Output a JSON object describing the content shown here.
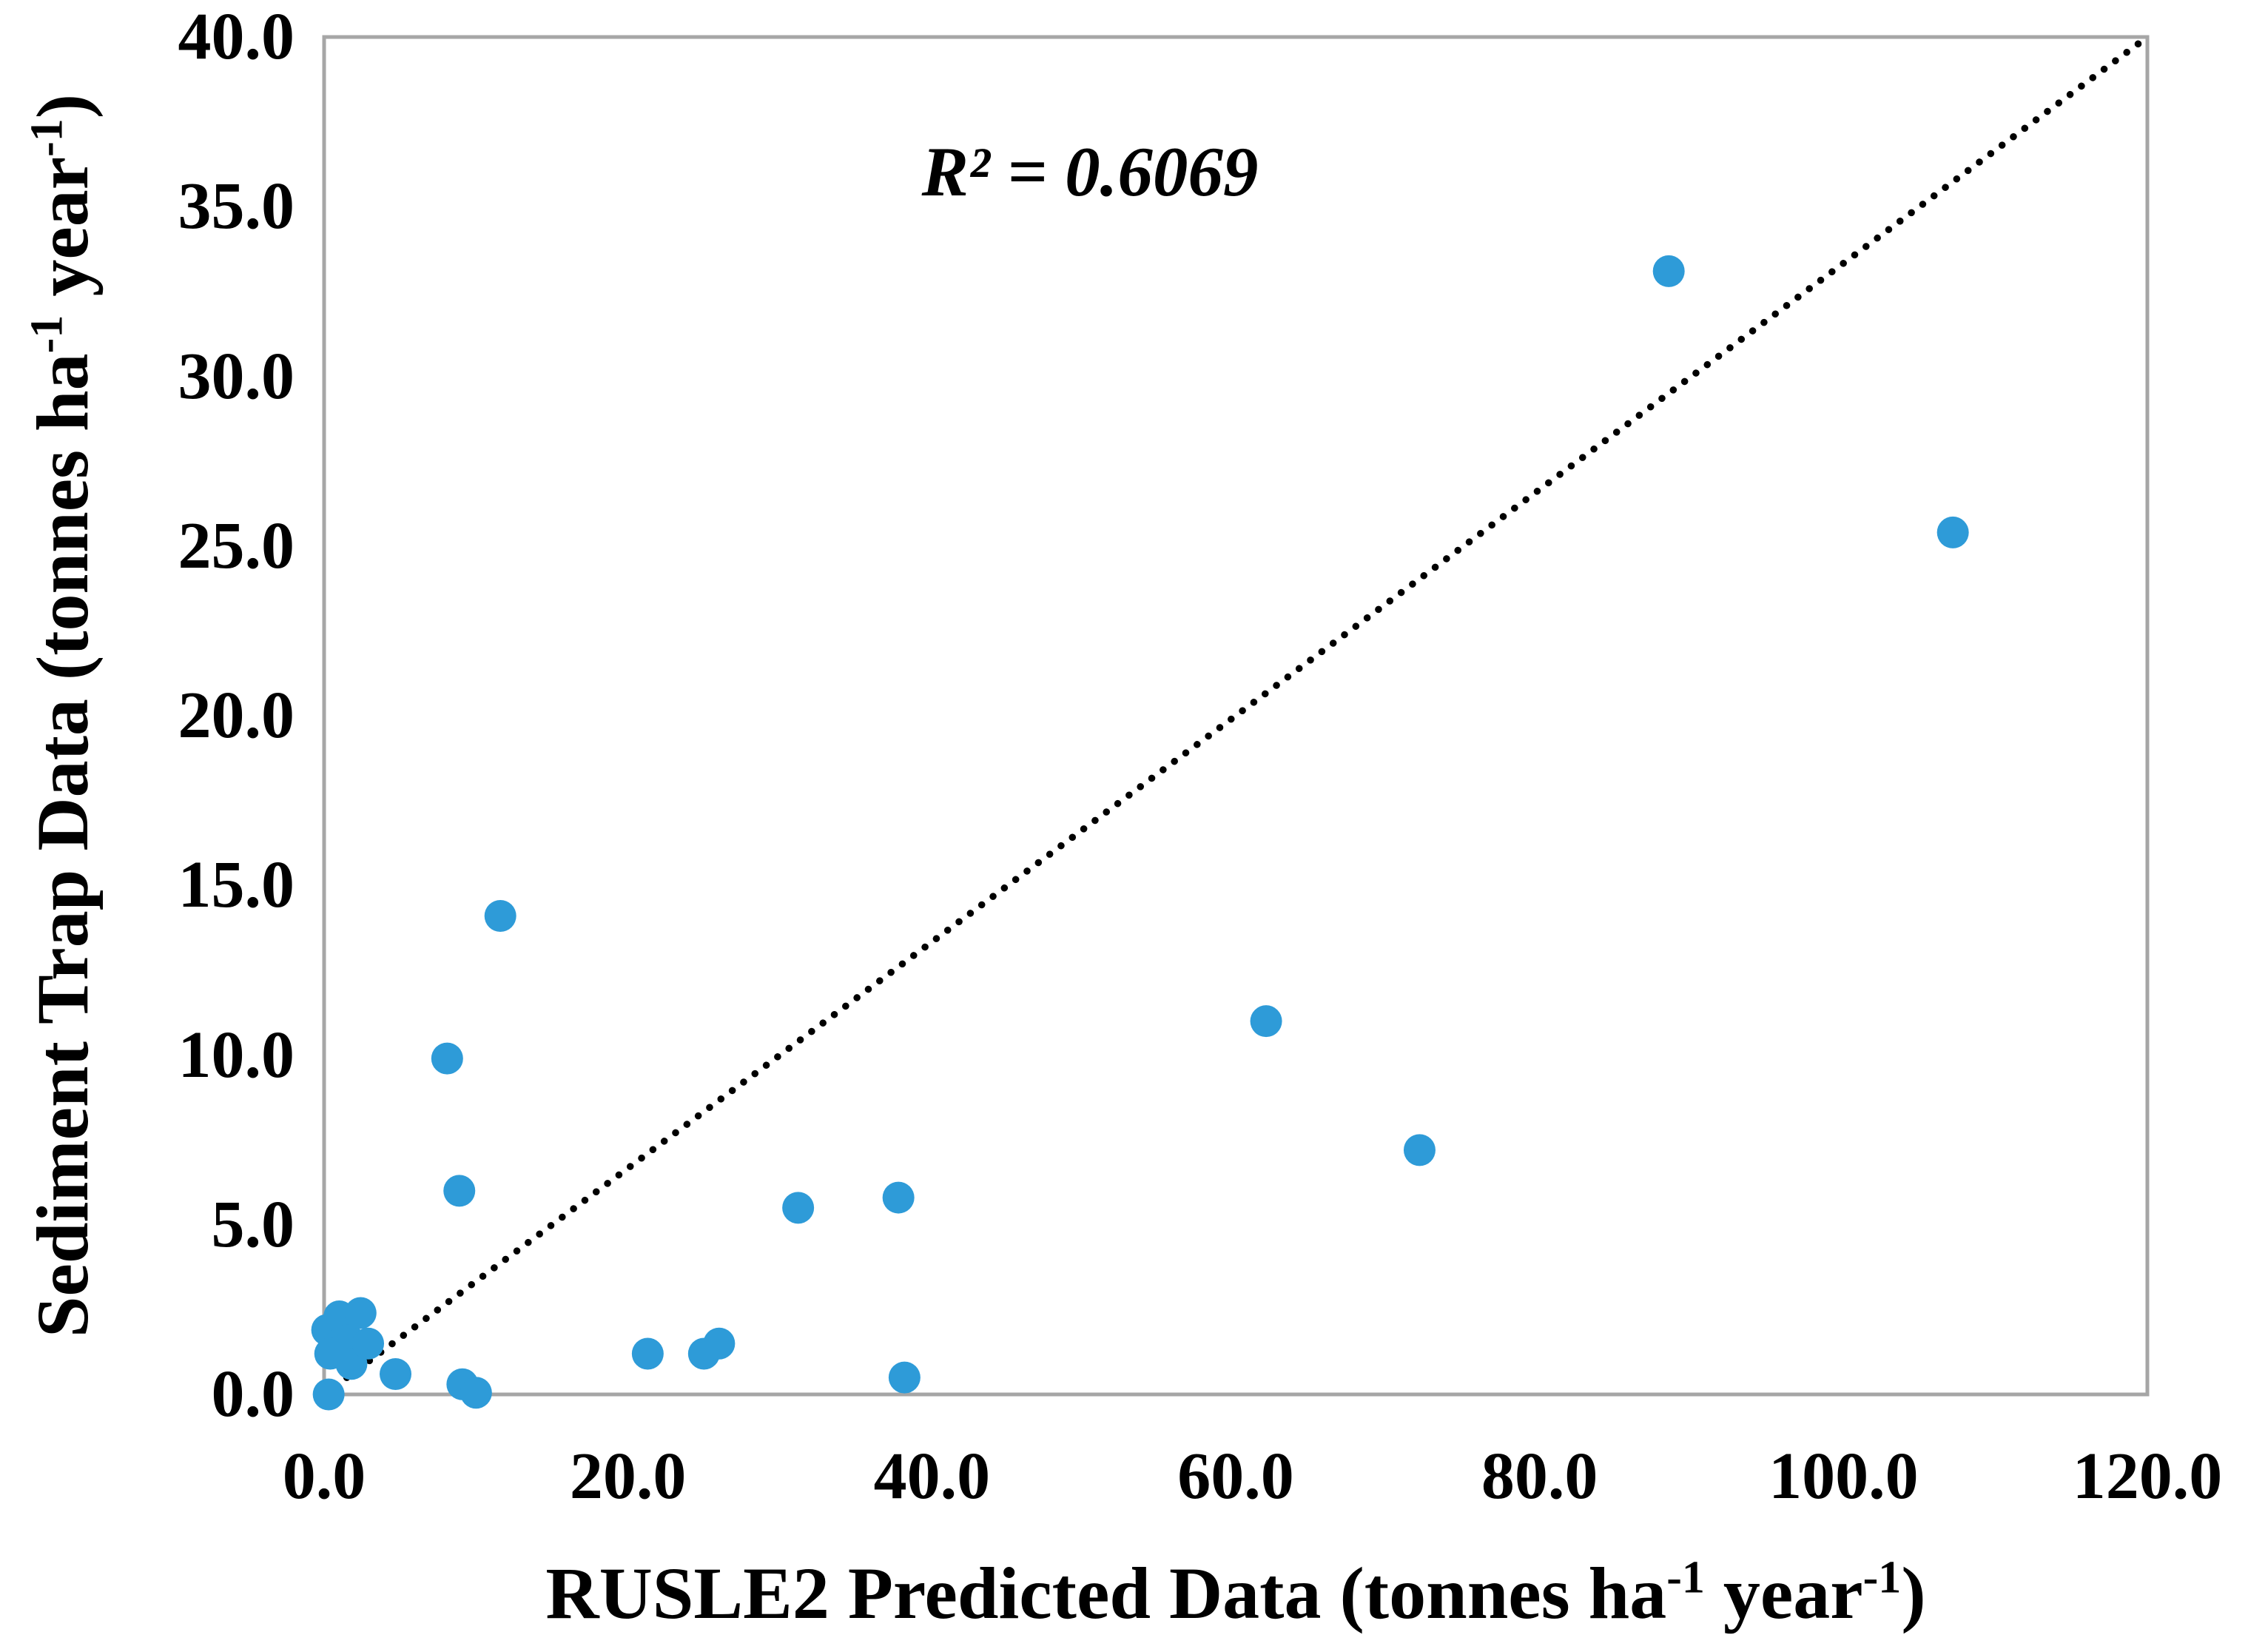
{
  "chart_data": {
    "type": "scatter",
    "title": "",
    "annotation": "R² = 0.6069",
    "xlabel": "RUSLE2 Predicted Data (tonnes ha-1 year-1)",
    "ylabel": "Sediment Trap Data (tonnes ha-1 year-1)",
    "xlabel_parts": [
      {
        "t": "RUSLE2 Predicted Data (tonnes ha"
      },
      {
        "s": "-1"
      },
      {
        "t": " year"
      },
      {
        "s": "-1"
      },
      {
        "t": ")"
      }
    ],
    "ylabel_parts": [
      {
        "t": "Sediment Trap Data (tonnes ha"
      },
      {
        "s": "-1"
      },
      {
        "t": " year"
      },
      {
        "s": "-1"
      },
      {
        "t": ")"
      }
    ],
    "xlim": [
      0,
      120
    ],
    "ylim": [
      0,
      40
    ],
    "x_tick_labels": [
      "0.0",
      "20.0",
      "40.0",
      "60.0",
      "80.0",
      "100.0",
      "120.0"
    ],
    "x_tick_values": [
      0,
      20,
      40,
      60,
      80,
      100,
      120
    ],
    "y_tick_labels": [
      "0.0",
      "5.0",
      "10.0",
      "15.0",
      "20.0",
      "25.0",
      "30.0",
      "35.0",
      "40.0"
    ],
    "y_tick_values": [
      0,
      5,
      10,
      15,
      20,
      25,
      30,
      35,
      40
    ],
    "grid": false,
    "legend": "none",
    "marker_color": "#2E9BD8",
    "axis_color": "#A6A6A6",
    "line_color": "#000000",
    "identity_line": {
      "x1": 0,
      "y1": 0,
      "x2": 120,
      "y2": 40,
      "style": "dotted"
    },
    "points": [
      [
        0.3,
        0.0
      ],
      [
        0.2,
        1.9
      ],
      [
        0.4,
        1.2
      ],
      [
        1.0,
        2.3
      ],
      [
        1.6,
        1.6
      ],
      [
        1.8,
        0.9
      ],
      [
        2.4,
        2.4
      ],
      [
        2.9,
        1.5
      ],
      [
        4.7,
        0.6
      ],
      [
        9.1,
        0.3
      ],
      [
        10.0,
        0.05
      ],
      [
        8.9,
        6.0
      ],
      [
        8.1,
        9.9
      ],
      [
        11.6,
        14.1
      ],
      [
        21.3,
        1.2
      ],
      [
        25.0,
        1.2
      ],
      [
        26.0,
        1.5
      ],
      [
        31.2,
        5.5
      ],
      [
        37.8,
        5.8
      ],
      [
        38.2,
        0.5
      ],
      [
        62.0,
        11.0
      ],
      [
        72.1,
        7.2
      ],
      [
        88.5,
        33.1
      ],
      [
        107.2,
        25.4
      ]
    ]
  }
}
